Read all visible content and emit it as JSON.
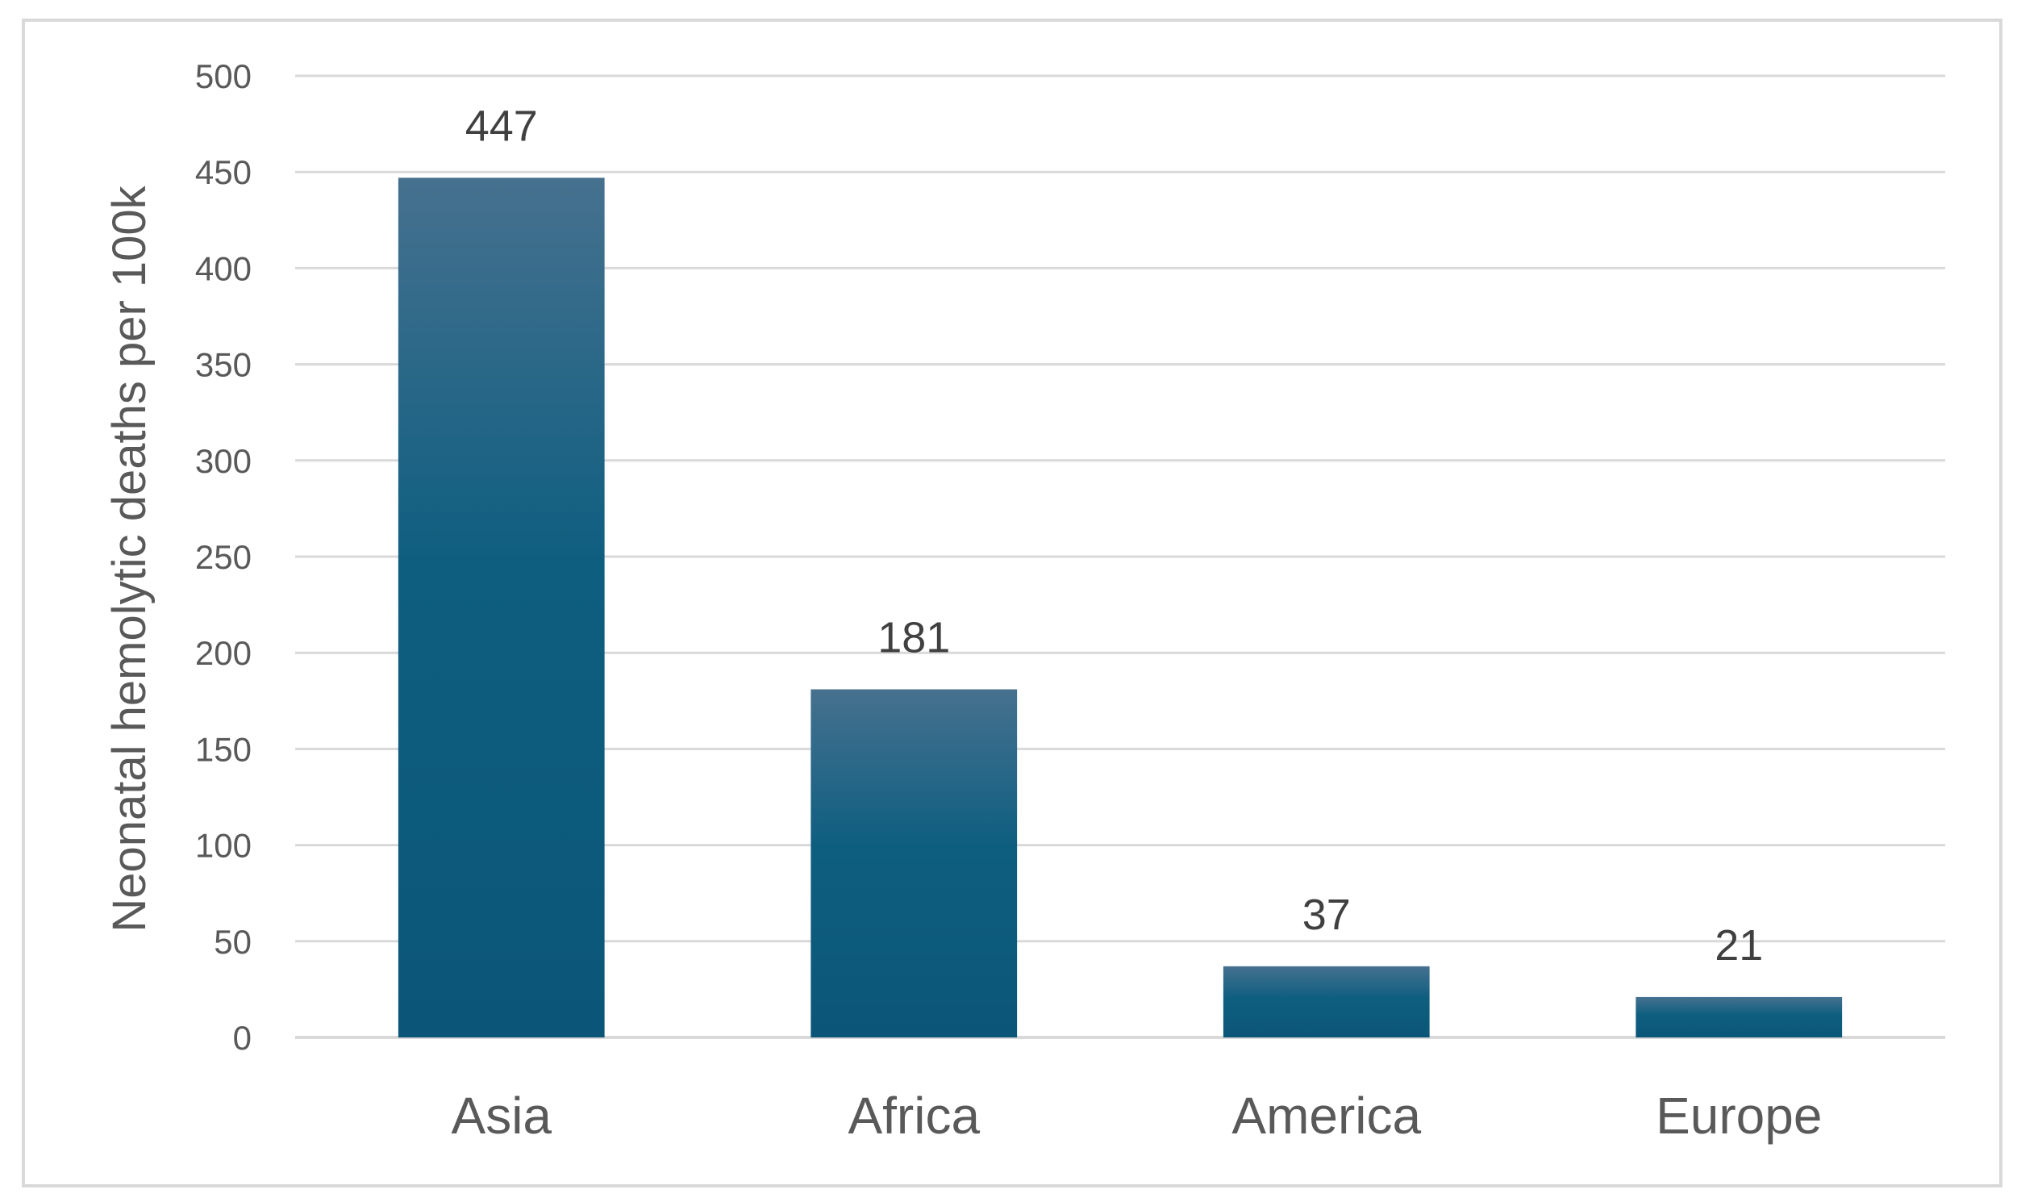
{
  "chart_data": {
    "type": "bar",
    "title": "",
    "xlabel": "",
    "ylabel": "Neonatal hemolytic deaths per 100k",
    "categories": [
      "Asia",
      "Africa",
      "America",
      "Europe"
    ],
    "values": [
      447,
      181,
      37,
      21
    ],
    "ylim": [
      0,
      500
    ],
    "yticks": [
      0,
      50,
      100,
      150,
      200,
      250,
      300,
      350,
      400,
      450,
      500
    ],
    "grid": true,
    "legend": "none",
    "data_labels": true,
    "colors": {
      "bar_top": "#46718F",
      "bar_mid": "#0E5E80",
      "bar_bottom": "#0B5678",
      "grid": "#D9D9D9",
      "frame": "#D9D9D9",
      "axis_text": "#595959",
      "label_text": "#404040"
    }
  }
}
